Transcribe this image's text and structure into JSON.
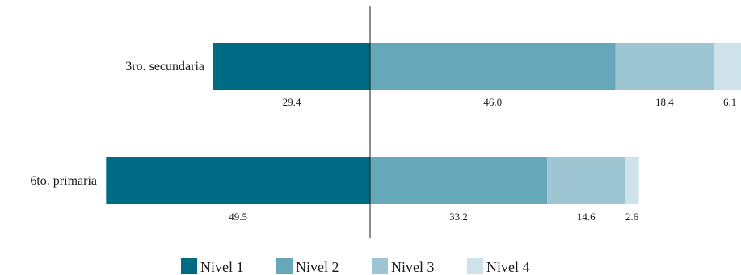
{
  "chart_data": {
    "type": "bar",
    "orientation": "horizontal",
    "stacked": true,
    "diverging": true,
    "title": "",
    "categories": [
      "3ro. secundaria",
      "6to. primaria"
    ],
    "series": [
      {
        "name": "Nivel 1",
        "values": [
          29.4,
          49.5
        ],
        "color": "#006b84"
      },
      {
        "name": "Nivel 2",
        "values": [
          46.0,
          33.2
        ],
        "color": "#66a8ba"
      },
      {
        "name": "Nivel 3",
        "values": [
          18.4,
          14.6
        ],
        "color": "#9ec6d2"
      },
      {
        "name": "Nivel 4",
        "values": [
          6.1,
          2.6
        ],
        "color": "#cde2e9"
      }
    ],
    "value_labels": [
      [
        "29.4",
        "46.0",
        "18.4",
        "6.1"
      ],
      [
        "49.5",
        "33.2",
        "14.6",
        "2.6"
      ]
    ],
    "legend_position": "bottom"
  }
}
